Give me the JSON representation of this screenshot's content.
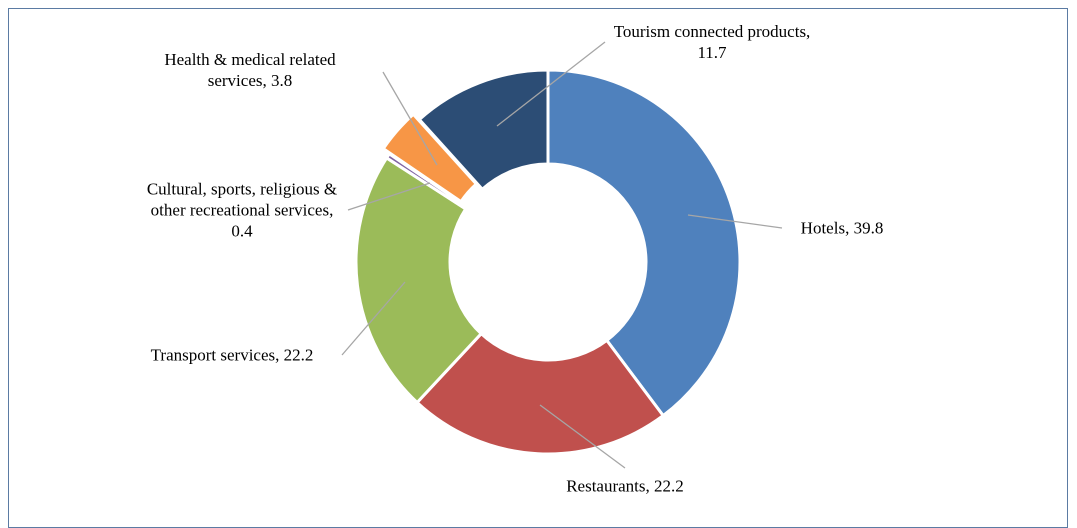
{
  "chart_data": {
    "type": "donut",
    "categories": [
      "Hotels,",
      "Restaurants,",
      "Transport services,",
      "Cultural, sports, religious & other recreational services,",
      "Health & medical related services,",
      "Tourism connected products,"
    ],
    "values": [
      39.8,
      22.2,
      22.2,
      0.4,
      3.8,
      11.7
    ],
    "colors": [
      "#4f81bd",
      "#c0504d",
      "#9bbb59",
      "#8064a2",
      "#f79646",
      "#2c4d75"
    ]
  }
}
